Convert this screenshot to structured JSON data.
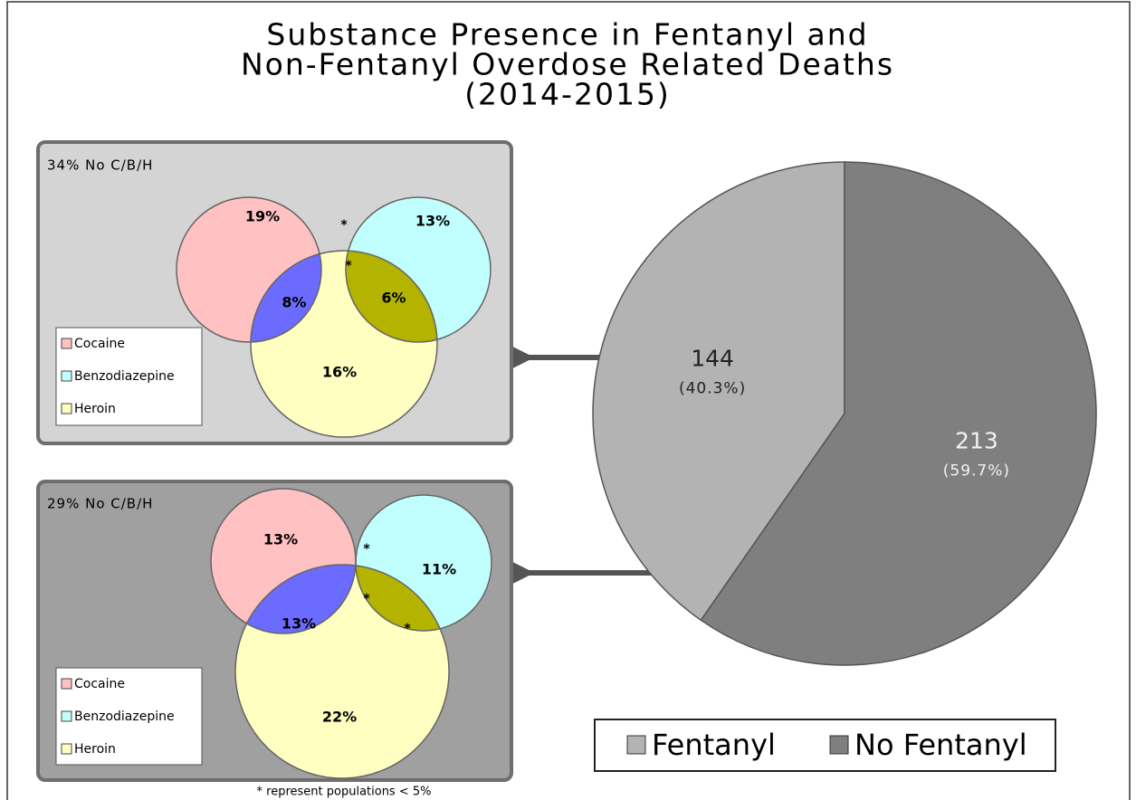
{
  "chart_data": [
    {
      "type": "pie",
      "title": [
        "Substance Presence in Fentanyl and",
        "Non-Fentanyl Overdose Related Deaths",
        "(2014-2015)"
      ],
      "categories": [
        "Fentanyl",
        "No Fentanyl"
      ],
      "values": [
        144,
        213
      ],
      "shares": [
        40.3,
        59.7
      ],
      "share_labels": [
        "(40.3%)",
        "(59.7%)"
      ],
      "colors": [
        "#b3b3b3",
        "#7f7f7f"
      ],
      "legend": "bottom"
    },
    {
      "type": "venn",
      "note": "34% No C/B/H",
      "sets": [
        {
          "name": "Cocaine",
          "color": "#ffc1c1"
        },
        {
          "name": "Benzodiazepine",
          "color": "#c1ffff"
        },
        {
          "name": "Heroin",
          "color": "#ffffc1"
        }
      ],
      "intersection_colors": [
        "#c4ffc4",
        "#6b6bff",
        "#b3b300",
        "#bcbcbc"
      ],
      "values": [
        19,
        13,
        16,
        null,
        8,
        6,
        null
      ],
      "value_labels": [
        "19%",
        "13%",
        "16%",
        "*",
        "8%",
        "6%",
        "*"
      ],
      "background": "#d4d4d4"
    },
    {
      "type": "venn",
      "note": "29% No C/B/H",
      "sets": [
        {
          "name": "Cocaine",
          "color": "#ffc1c1"
        },
        {
          "name": "Benzodiazepine",
          "color": "#c1ffff"
        },
        {
          "name": "Heroin",
          "color": "#ffffc1"
        }
      ],
      "intersection_colors": [
        "#c4ffc4",
        "#6b6bff",
        "#b3b300",
        "#bcbcbc"
      ],
      "values": [
        13,
        11,
        22,
        null,
        13,
        null,
        null
      ],
      "value_labels": [
        "13%",
        "11%",
        "22%",
        "*",
        "13%",
        "*",
        "*"
      ],
      "background": "#a0a0a0"
    }
  ],
  "footnote": "* represent populations < 5%"
}
